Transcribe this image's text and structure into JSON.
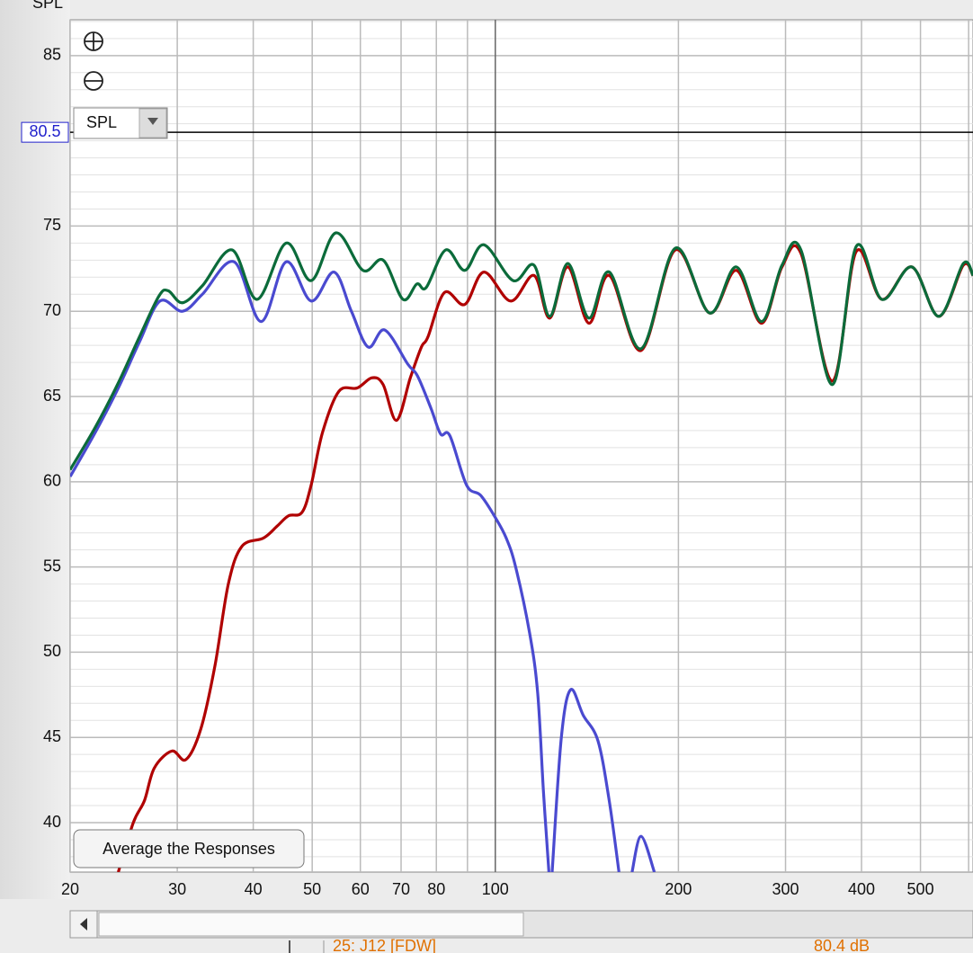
{
  "chart_data": {
    "type": "line",
    "y_label": "SPL",
    "xscale": "log",
    "xlim": [
      20,
      610
    ],
    "ylim": [
      37.1,
      87.1
    ],
    "xticks": [
      20,
      30,
      40,
      50,
      60,
      70,
      80,
      100,
      200,
      300,
      400,
      500
    ],
    "x_minor_ticks": [
      90,
      600
    ],
    "yticks": [
      40,
      45,
      50,
      55,
      60,
      65,
      70,
      75,
      85
    ],
    "y_minor_ticks": [
      38,
      39,
      41,
      42,
      43,
      44,
      46,
      47,
      48,
      49,
      51,
      52,
      53,
      54,
      56,
      57,
      58,
      59,
      61,
      62,
      63,
      64,
      66,
      67,
      68,
      69,
      71,
      72,
      73,
      74,
      76,
      77,
      78,
      79,
      80,
      81,
      82,
      83,
      84,
      86,
      87
    ],
    "grid": true,
    "cursor_y": 80.5,
    "series": [
      {
        "color": "#b00000",
        "x": [
          24,
          25.4,
          26.5,
          27.5,
          29.4,
          31,
          32.8,
          34.6,
          36.4,
          38.3,
          41.6,
          43.8,
          45.7,
          48.1,
          49.8,
          52,
          55.3,
          59.3,
          62.7,
          65.4,
          68.8,
          72.5,
          75.6,
          77.5,
          82.5,
          89.1,
          95.8,
          106,
          115.8,
          122.9,
          131.6,
          142.5,
          154,
          173.6,
          197.7,
          225,
          249,
          274,
          296,
          318,
          358,
          392,
          432,
          484,
          536,
          588,
          610
        ],
        "values": [
          37.1,
          40.0,
          41.3,
          43.2,
          44.2,
          43.7,
          45.5,
          49.2,
          54.0,
          56.2,
          56.7,
          57.4,
          58.0,
          58.2,
          59.8,
          62.9,
          65.3,
          65.5,
          66.1,
          65.7,
          63.6,
          66.1,
          67.9,
          68.5,
          71.1,
          70.4,
          72.3,
          70.6,
          72.1,
          69.6,
          72.6,
          69.3,
          72.1,
          67.7,
          73.6,
          69.9,
          72.4,
          69.3,
          72.6,
          73.4,
          65.9,
          73.5,
          70.7,
          72.6,
          69.7,
          72.7,
          72.1
        ]
      },
      {
        "color": "#4a4ad0",
        "x": [
          20,
          22,
          24,
          26,
          28.1,
          30.6,
          33,
          37.2,
          41.2,
          45.3,
          49.8,
          54.3,
          58,
          61.8,
          65.8,
          71.8,
          74.5,
          78.4,
          81.3,
          84.2,
          89.7,
          94.6,
          100,
          104.2,
          108,
          113.9,
          117.4,
          120,
          122.5,
          123.2,
          124,
          128.4,
          133,
          139.5,
          147.5,
          153.9,
          159.7,
          163.7,
          167.8,
          173.6,
          182.6
        ],
        "values": [
          60.3,
          62.9,
          65.5,
          68.2,
          70.6,
          70.0,
          71.0,
          72.9,
          69.4,
          72.9,
          70.6,
          72.3,
          70.0,
          67.9,
          68.9,
          66.9,
          66.2,
          64.3,
          62.8,
          62.7,
          59.8,
          59.2,
          57.9,
          56.7,
          55.0,
          51.1,
          47.6,
          41.8,
          37.1,
          null,
          37.1,
          45.0,
          47.8,
          46.3,
          44.8,
          41.3,
          37.1,
          null,
          37.1,
          39.2,
          37.1
        ]
      },
      {
        "color": "#0b6b3a",
        "x": [
          20,
          22,
          24,
          26,
          28,
          29,
          30.6,
          33,
          36.9,
          40.6,
          45.3,
          49.8,
          54.7,
          60.6,
          65.4,
          70.5,
          74.3,
          77,
          82.9,
          89.1,
          95.8,
          107,
          115.8,
          122.9,
          131.6,
          142.5,
          154,
          173.6,
          197.7,
          225,
          249,
          274,
          296,
          318,
          358,
          392,
          432,
          484,
          536,
          588,
          610
        ],
        "values": [
          60.7,
          63.2,
          65.8,
          68.5,
          70.9,
          71.2,
          70.5,
          71.5,
          73.6,
          70.7,
          74.0,
          71.8,
          74.6,
          72.4,
          73.0,
          70.7,
          71.6,
          71.4,
          73.6,
          72.4,
          73.9,
          71.8,
          72.7,
          69.7,
          72.8,
          69.6,
          72.3,
          67.8,
          73.7,
          69.9,
          72.6,
          69.4,
          72.7,
          73.6,
          65.7,
          73.8,
          70.7,
          72.6,
          69.7,
          72.8,
          72.1
        ]
      }
    ]
  },
  "ui": {
    "dropdown": "SPL",
    "button": "Average the Responses",
    "status_item": "25: J12 [FDW]",
    "status_value": "80.4 dB"
  }
}
